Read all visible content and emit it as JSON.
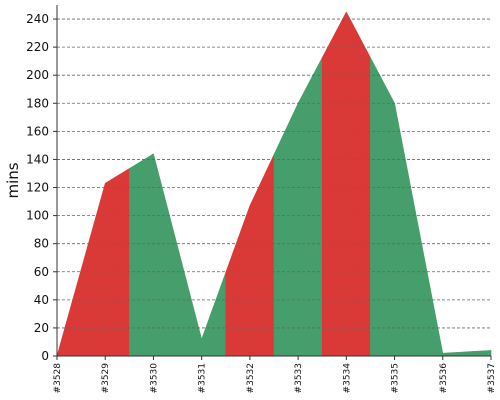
{
  "chart_data": {
    "type": "area",
    "title": "",
    "xlabel": "",
    "ylabel": "mins",
    "ylim": [
      0,
      250
    ],
    "yticks": [
      0,
      20,
      40,
      60,
      80,
      100,
      120,
      140,
      160,
      180,
      200,
      220,
      240
    ],
    "grid": true,
    "categories": [
      "#3528",
      "#3529",
      "#3530",
      "#3531",
      "#3532",
      "#3533",
      "#3534",
      "#3535",
      "#3536",
      "#3537"
    ],
    "values": [
      0,
      123,
      144,
      12,
      107,
      180,
      245,
      180,
      2,
      4
    ],
    "band_status": [
      "failed",
      "failed",
      "passed",
      "passed",
      "failed",
      "passed",
      "failed",
      "passed",
      "passed",
      "passed"
    ],
    "status_colors": {
      "failed": "#d93a38",
      "passed": "#459e6b"
    },
    "colors": {
      "grid": "#666666",
      "axis": "#333333"
    }
  }
}
